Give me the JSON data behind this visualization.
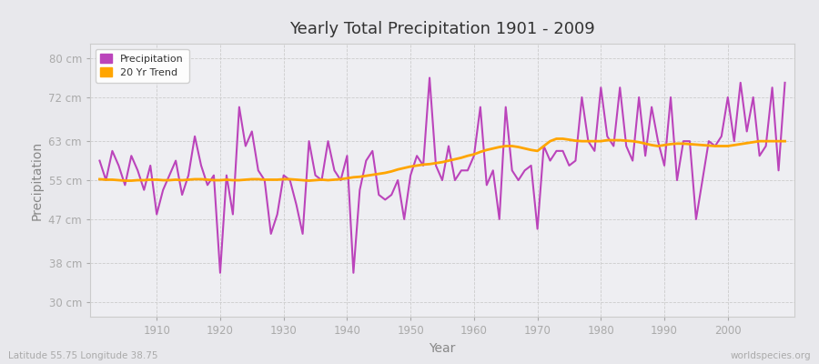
{
  "title": "Yearly Total Precipitation 1901 - 2009",
  "xlabel": "Year",
  "ylabel": "Precipitation",
  "subtitle_left": "Latitude 55.75 Longitude 38.75",
  "subtitle_right": "worldspecies.org",
  "legend_entries": [
    "Precipitation",
    "20 Yr Trend"
  ],
  "precip_color": "#BB44BB",
  "trend_color": "#FFA500",
  "bg_color": "#E8E8EC",
  "plot_bg_color": "#EEEEF2",
  "ytick_labels": [
    "30 cm",
    "38 cm",
    "47 cm",
    "55 cm",
    "63 cm",
    "72 cm",
    "80 cm"
  ],
  "ytick_values": [
    30,
    38,
    47,
    55,
    63,
    72,
    80
  ],
  "ylim": [
    27,
    83
  ],
  "xlim": [
    1899.5,
    2010.5
  ],
  "years": [
    1901,
    1902,
    1903,
    1904,
    1905,
    1906,
    1907,
    1908,
    1909,
    1910,
    1911,
    1912,
    1913,
    1914,
    1915,
    1916,
    1917,
    1918,
    1919,
    1920,
    1921,
    1922,
    1923,
    1924,
    1925,
    1926,
    1927,
    1928,
    1929,
    1930,
    1931,
    1932,
    1933,
    1934,
    1935,
    1936,
    1937,
    1938,
    1939,
    1940,
    1941,
    1942,
    1943,
    1944,
    1945,
    1946,
    1947,
    1948,
    1949,
    1950,
    1951,
    1952,
    1953,
    1954,
    1955,
    1956,
    1957,
    1958,
    1959,
    1960,
    1961,
    1962,
    1963,
    1964,
    1965,
    1966,
    1967,
    1968,
    1969,
    1970,
    1971,
    1972,
    1973,
    1974,
    1975,
    1976,
    1977,
    1978,
    1979,
    1980,
    1981,
    1982,
    1983,
    1984,
    1985,
    1986,
    1987,
    1988,
    1989,
    1990,
    1991,
    1992,
    1993,
    1994,
    1995,
    1996,
    1997,
    1998,
    1999,
    2000,
    2001,
    2002,
    2003,
    2004,
    2005,
    2006,
    2007,
    2008,
    2009
  ],
  "precip": [
    59,
    55,
    61,
    58,
    54,
    60,
    57,
    53,
    58,
    48,
    53,
    56,
    59,
    52,
    56,
    64,
    58,
    54,
    56,
    36,
    56,
    48,
    70,
    62,
    65,
    57,
    55,
    44,
    48,
    56,
    55,
    50,
    44,
    63,
    56,
    55,
    63,
    57,
    55,
    60,
    36,
    53,
    59,
    61,
    52,
    51,
    52,
    55,
    47,
    56,
    60,
    58,
    76,
    58,
    55,
    62,
    55,
    57,
    57,
    60,
    70,
    54,
    57,
    47,
    70,
    57,
    55,
    57,
    58,
    45,
    62,
    59,
    61,
    61,
    58,
    59,
    72,
    63,
    61,
    74,
    64,
    62,
    74,
    62,
    59,
    72,
    60,
    70,
    63,
    58,
    72,
    55,
    63,
    63,
    47,
    55,
    63,
    62,
    64,
    72,
    63,
    75,
    65,
    72,
    60,
    62,
    74,
    57,
    75
  ],
  "trend": [
    55.2,
    55.1,
    55.1,
    55.0,
    54.9,
    54.9,
    55.0,
    55.0,
    55.1,
    55.1,
    55.0,
    55.0,
    55.1,
    55.0,
    55.1,
    55.2,
    55.2,
    55.1,
    55.0,
    55.0,
    55.1,
    55.0,
    55.0,
    55.1,
    55.2,
    55.2,
    55.1,
    55.1,
    55.1,
    55.2,
    55.2,
    55.1,
    55.0,
    54.9,
    55.0,
    55.1,
    55.0,
    55.1,
    55.2,
    55.4,
    55.6,
    55.7,
    55.9,
    56.1,
    56.3,
    56.5,
    56.8,
    57.2,
    57.5,
    57.8,
    58.0,
    58.2,
    58.3,
    58.5,
    58.7,
    59.0,
    59.3,
    59.6,
    60.0,
    60.3,
    60.8,
    61.2,
    61.5,
    61.8,
    62.0,
    62.0,
    61.8,
    61.5,
    61.2,
    61.0,
    62.0,
    63.0,
    63.5,
    63.5,
    63.3,
    63.1,
    63.0,
    63.0,
    63.0,
    63.0,
    63.2,
    63.2,
    63.2,
    63.1,
    63.0,
    62.8,
    62.5,
    62.2,
    62.0,
    62.2,
    62.4,
    62.5,
    62.5,
    62.4,
    62.3,
    62.2,
    62.1,
    62.0,
    62.0,
    62.0,
    62.2,
    62.4,
    62.6,
    62.8,
    63.0,
    63.0,
    63.0,
    63.0,
    63.0
  ]
}
